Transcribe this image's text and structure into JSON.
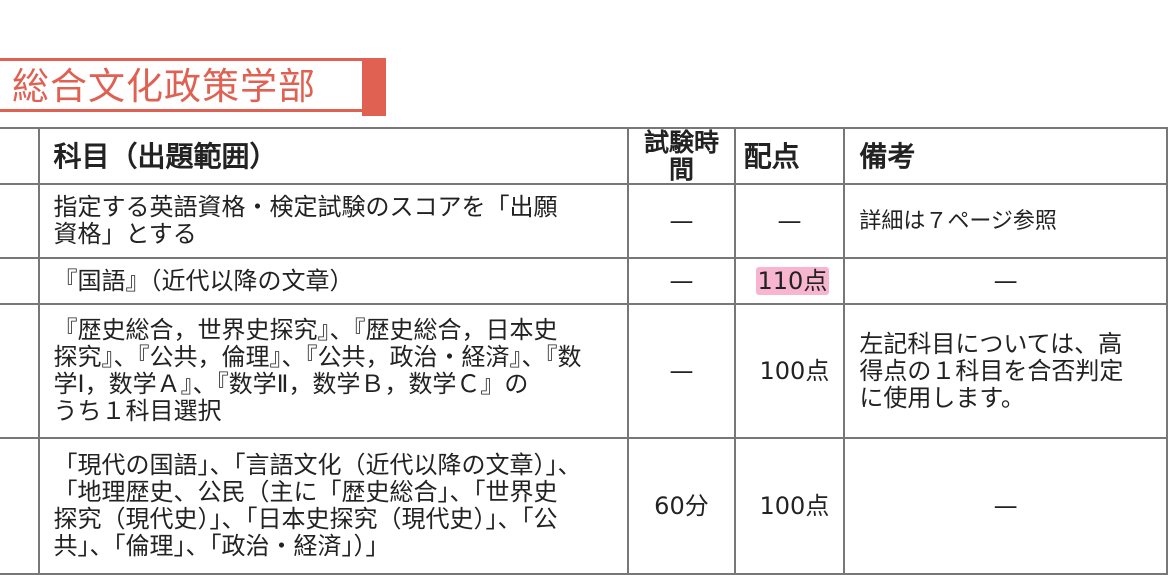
{
  "title": "総合文化政策学部",
  "accent_color": "#e06152",
  "table": {
    "headers": [
      "",
      "科目（出題範囲）",
      "試験時間",
      "配点",
      "備考"
    ],
    "rows": [
      {
        "subject": [
          "指定する英語資格・検定試験のスコアを「出願",
          "資格」とする"
        ],
        "time": "—",
        "points": "—",
        "notes": [
          "詳細は７ページ参照"
        ]
      },
      {
        "subject": [
          "『国語』（近代以降の文章）"
        ],
        "time": "—",
        "points": "110点",
        "points_highlighted": true,
        "notes": [
          "—"
        ]
      },
      {
        "subject": [
          "『歴史総合，世界史探究』、『歴史総合，日本史",
          "探究』、『公共，倫理』、『公共，政治・経済』、『数",
          "学Ⅰ，数学Ａ』、『数学Ⅱ，数学Ｂ，数学Ｃ』の",
          "うち１科目選択"
        ],
        "time": "—",
        "points": "100点",
        "notes": [
          "左記科目については、高",
          "得点の１科目を合否判定",
          "に使用します。"
        ]
      },
      {
        "subject": [
          "「現代の国語」、「言語文化（近代以降の文章）」、",
          "「地理歴史、公民（主に「歴史総合」、「世界史",
          "探究（現代史）」、「日本史探究（現代史）」、「公",
          "共」、「倫理」、「政治・経済」）」"
        ],
        "time": "60分",
        "points": "100点",
        "notes": [
          "—"
        ]
      }
    ]
  }
}
